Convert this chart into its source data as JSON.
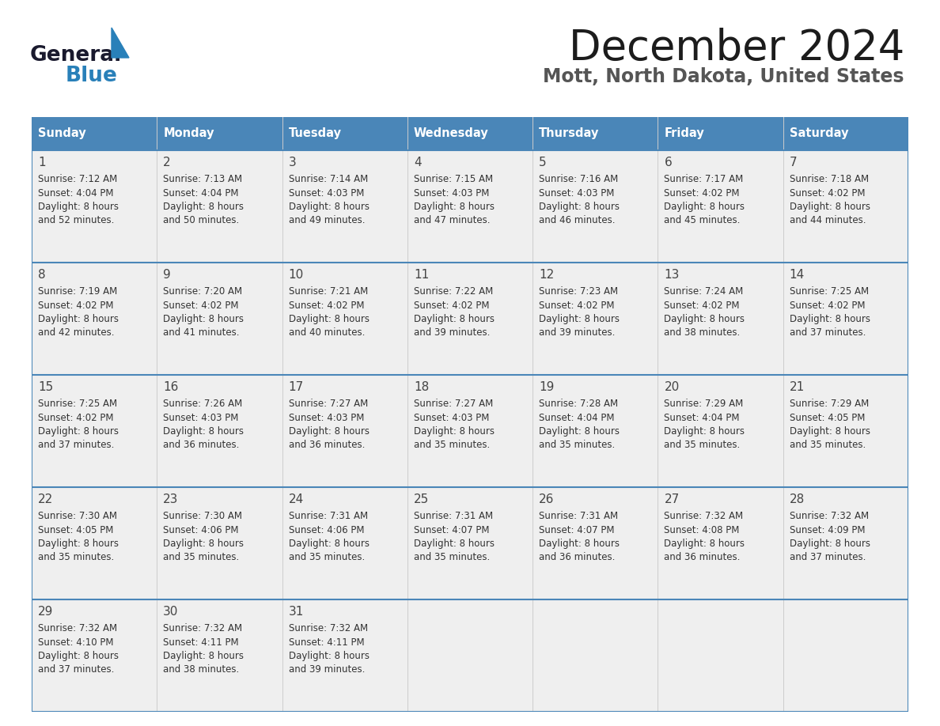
{
  "title": "December 2024",
  "subtitle": "Mott, North Dakota, United States",
  "header_bg_color": "#4a86b8",
  "header_text_color": "#ffffff",
  "cell_bg_color": "#efefef",
  "cell_text_color": "#333333",
  "day_number_color": "#444444",
  "line_color": "#4a86b8",
  "days_of_week": [
    "Sunday",
    "Monday",
    "Tuesday",
    "Wednesday",
    "Thursday",
    "Friday",
    "Saturday"
  ],
  "calendar": [
    [
      {
        "day": 1,
        "sunrise": "7:12 AM",
        "sunset": "4:04 PM",
        "daylight": "8 hours and 52 minutes."
      },
      {
        "day": 2,
        "sunrise": "7:13 AM",
        "sunset": "4:04 PM",
        "daylight": "8 hours and 50 minutes."
      },
      {
        "day": 3,
        "sunrise": "7:14 AM",
        "sunset": "4:03 PM",
        "daylight": "8 hours and 49 minutes."
      },
      {
        "day": 4,
        "sunrise": "7:15 AM",
        "sunset": "4:03 PM",
        "daylight": "8 hours and 47 minutes."
      },
      {
        "day": 5,
        "sunrise": "7:16 AM",
        "sunset": "4:03 PM",
        "daylight": "8 hours and 46 minutes."
      },
      {
        "day": 6,
        "sunrise": "7:17 AM",
        "sunset": "4:02 PM",
        "daylight": "8 hours and 45 minutes."
      },
      {
        "day": 7,
        "sunrise": "7:18 AM",
        "sunset": "4:02 PM",
        "daylight": "8 hours and 44 minutes."
      }
    ],
    [
      {
        "day": 8,
        "sunrise": "7:19 AM",
        "sunset": "4:02 PM",
        "daylight": "8 hours and 42 minutes."
      },
      {
        "day": 9,
        "sunrise": "7:20 AM",
        "sunset": "4:02 PM",
        "daylight": "8 hours and 41 minutes."
      },
      {
        "day": 10,
        "sunrise": "7:21 AM",
        "sunset": "4:02 PM",
        "daylight": "8 hours and 40 minutes."
      },
      {
        "day": 11,
        "sunrise": "7:22 AM",
        "sunset": "4:02 PM",
        "daylight": "8 hours and 39 minutes."
      },
      {
        "day": 12,
        "sunrise": "7:23 AM",
        "sunset": "4:02 PM",
        "daylight": "8 hours and 39 minutes."
      },
      {
        "day": 13,
        "sunrise": "7:24 AM",
        "sunset": "4:02 PM",
        "daylight": "8 hours and 38 minutes."
      },
      {
        "day": 14,
        "sunrise": "7:25 AM",
        "sunset": "4:02 PM",
        "daylight": "8 hours and 37 minutes."
      }
    ],
    [
      {
        "day": 15,
        "sunrise": "7:25 AM",
        "sunset": "4:02 PM",
        "daylight": "8 hours and 37 minutes."
      },
      {
        "day": 16,
        "sunrise": "7:26 AM",
        "sunset": "4:03 PM",
        "daylight": "8 hours and 36 minutes."
      },
      {
        "day": 17,
        "sunrise": "7:27 AM",
        "sunset": "4:03 PM",
        "daylight": "8 hours and 36 minutes."
      },
      {
        "day": 18,
        "sunrise": "7:27 AM",
        "sunset": "4:03 PM",
        "daylight": "8 hours and 35 minutes."
      },
      {
        "day": 19,
        "sunrise": "7:28 AM",
        "sunset": "4:04 PM",
        "daylight": "8 hours and 35 minutes."
      },
      {
        "day": 20,
        "sunrise": "7:29 AM",
        "sunset": "4:04 PM",
        "daylight": "8 hours and 35 minutes."
      },
      {
        "day": 21,
        "sunrise": "7:29 AM",
        "sunset": "4:05 PM",
        "daylight": "8 hours and 35 minutes."
      }
    ],
    [
      {
        "day": 22,
        "sunrise": "7:30 AM",
        "sunset": "4:05 PM",
        "daylight": "8 hours and 35 minutes."
      },
      {
        "day": 23,
        "sunrise": "7:30 AM",
        "sunset": "4:06 PM",
        "daylight": "8 hours and 35 minutes."
      },
      {
        "day": 24,
        "sunrise": "7:31 AM",
        "sunset": "4:06 PM",
        "daylight": "8 hours and 35 minutes."
      },
      {
        "day": 25,
        "sunrise": "7:31 AM",
        "sunset": "4:07 PM",
        "daylight": "8 hours and 35 minutes."
      },
      {
        "day": 26,
        "sunrise": "7:31 AM",
        "sunset": "4:07 PM",
        "daylight": "8 hours and 36 minutes."
      },
      {
        "day": 27,
        "sunrise": "7:32 AM",
        "sunset": "4:08 PM",
        "daylight": "8 hours and 36 minutes."
      },
      {
        "day": 28,
        "sunrise": "7:32 AM",
        "sunset": "4:09 PM",
        "daylight": "8 hours and 37 minutes."
      }
    ],
    [
      {
        "day": 29,
        "sunrise": "7:32 AM",
        "sunset": "4:10 PM",
        "daylight": "8 hours and 37 minutes."
      },
      {
        "day": 30,
        "sunrise": "7:32 AM",
        "sunset": "4:11 PM",
        "daylight": "8 hours and 38 minutes."
      },
      {
        "day": 31,
        "sunrise": "7:32 AM",
        "sunset": "4:11 PM",
        "daylight": "8 hours and 39 minutes."
      },
      null,
      null,
      null,
      null
    ]
  ],
  "logo_text_general": "General",
  "logo_text_blue": "Blue",
  "logo_color_general": "#1a1a2e",
  "logo_color_blue": "#2980b9",
  "logo_triangle_color": "#2980b9",
  "figwidth": 11.88,
  "figheight": 9.18,
  "dpi": 100
}
